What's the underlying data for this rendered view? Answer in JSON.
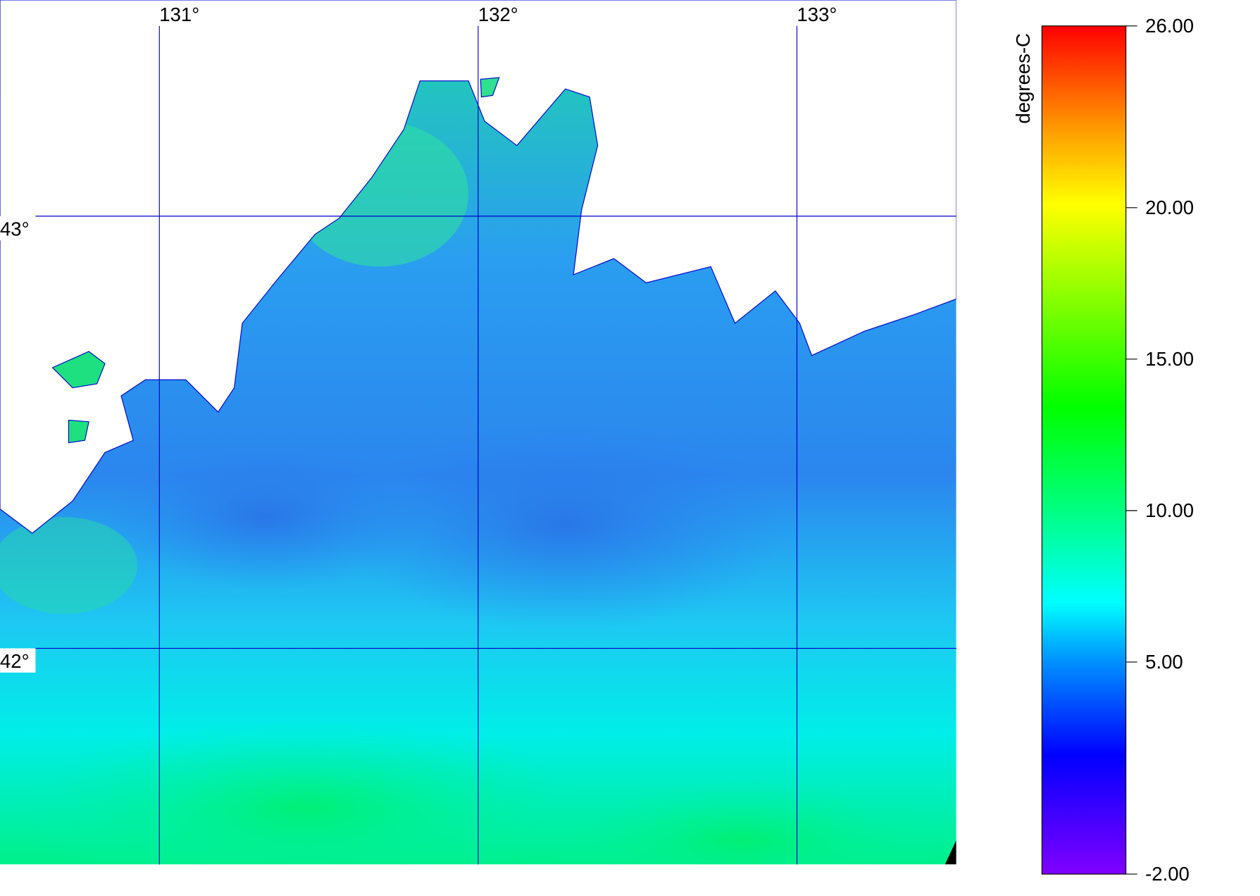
{
  "map": {
    "lonlim": [
      130.5,
      133.5
    ],
    "latlim": [
      41.5,
      43.5
    ],
    "lonticks": [
      {
        "value": 131,
        "label": "131°"
      },
      {
        "value": 132,
        "label": "132°"
      },
      {
        "value": 133,
        "label": "133°"
      }
    ],
    "latticks": [
      {
        "value": 43,
        "label": "43°"
      },
      {
        "value": 42,
        "label": "42°"
      }
    ],
    "grid_color": "#0000cc"
  },
  "colorbar": {
    "label": "degrees-C",
    "lim": [
      -2,
      26
    ],
    "ticks": [
      {
        "value": 26,
        "label": "26.00"
      },
      {
        "value": 20,
        "label": "20.00"
      },
      {
        "value": 15,
        "label": "15.00"
      },
      {
        "value": 10,
        "label": "10.00"
      },
      {
        "value": 5,
        "label": "5.00"
      },
      {
        "value": -2,
        "label": "-2.00"
      }
    ]
  }
}
